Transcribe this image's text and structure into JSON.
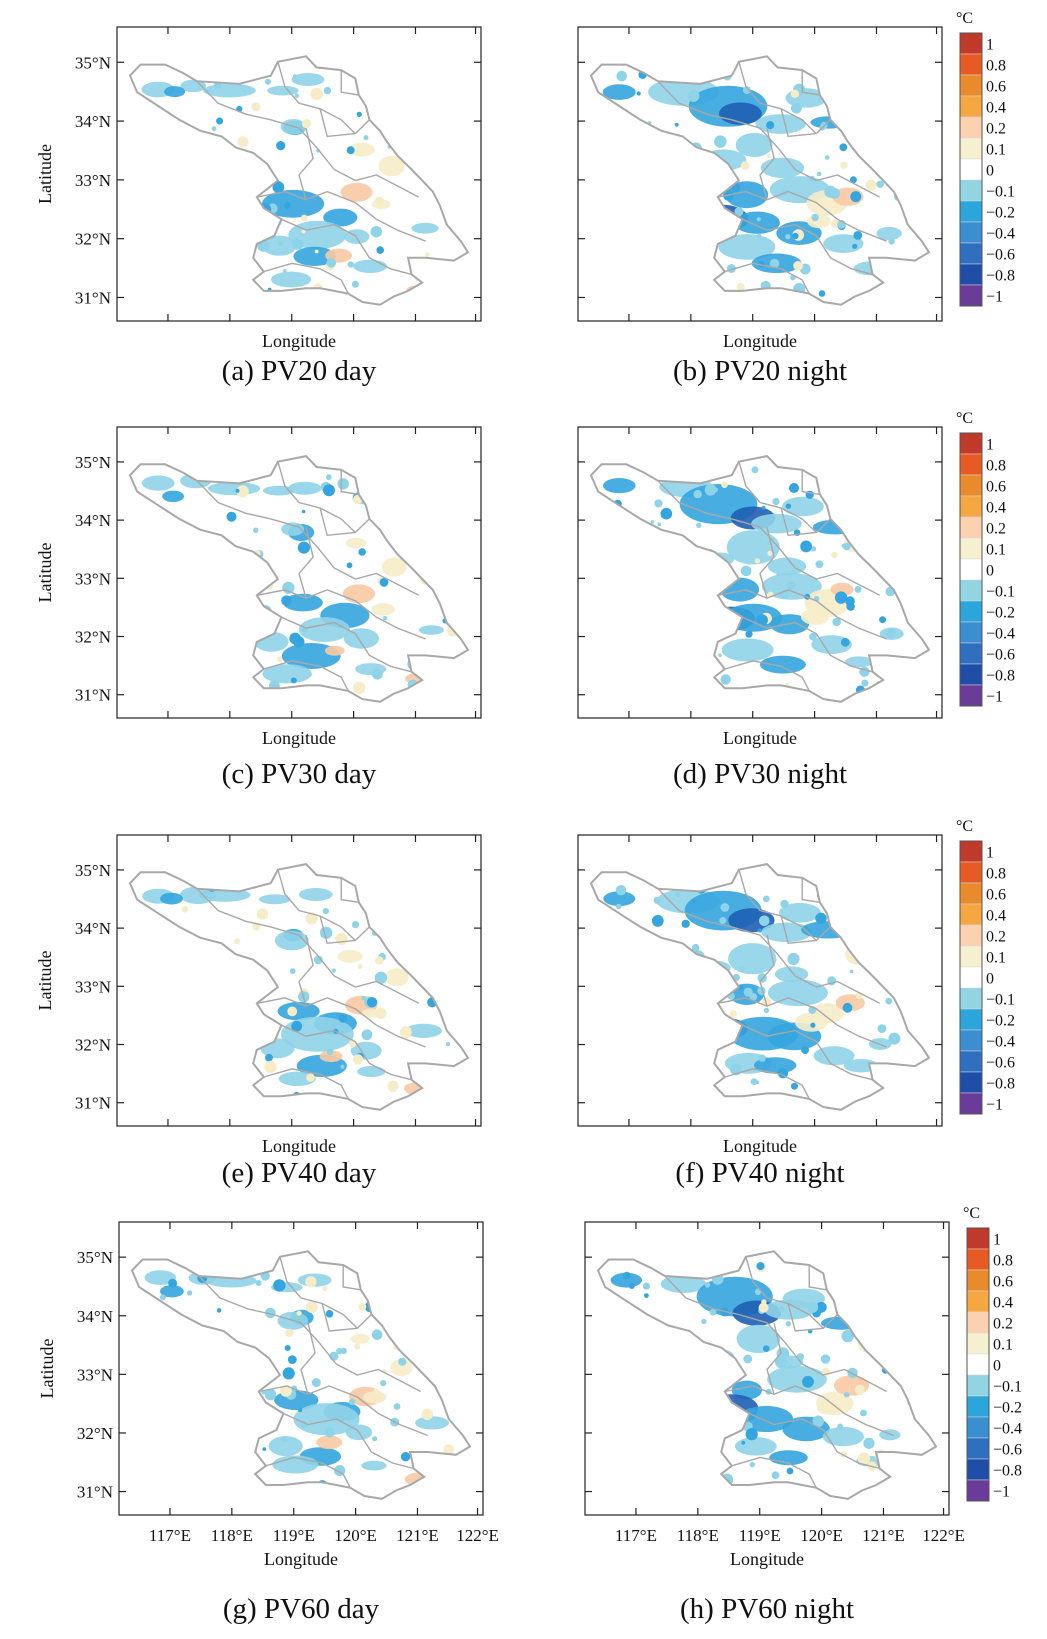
{
  "figure": {
    "x_axis_title": "Longitude",
    "y_axis_title": "Latitude",
    "lat_ticks": [
      "35°N",
      "34°N",
      "33°N",
      "32°N",
      "31°N"
    ],
    "lon_ticks": [
      "117°E",
      "118°E",
      "119°E",
      "120°E",
      "121°E",
      "122°E"
    ]
  },
  "colorbar": {
    "unit": "°C",
    "labels": [
      "1",
      "0.8",
      "0.6",
      "0.4",
      "0.2",
      "0.1",
      "0",
      "−0.1",
      "−0.2",
      "−0.4",
      "−0.6",
      "−0.8",
      "−1"
    ],
    "colors": [
      "#c0392b",
      "#e85a24",
      "#e98b2a",
      "#f5a742",
      "#fbd1b0",
      "#f5f0cf",
      "#ffffff",
      "#93d4e3",
      "#2aa6db",
      "#3a8fd1",
      "#2f6fc0",
      "#1f4ea8",
      "#6a3b98"
    ]
  },
  "colors": {
    "province_fill": "#ffffff",
    "province_border": "#a8a8a8",
    "cooling_light": "#8fd3e8",
    "cooling_mid": "#34a5de",
    "cooling_strong": "#1f5fb5",
    "warming_light": "#f6ecc8",
    "warming_mid": "#f8c9a3",
    "warming_strong": "#e97f3a"
  },
  "panels": [
    {
      "id": "a",
      "caption": "(a) PV20 day"
    },
    {
      "id": "b",
      "caption": "(b) PV20 night"
    },
    {
      "id": "c",
      "caption": "(c) PV30 day"
    },
    {
      "id": "d",
      "caption": "(d) PV30 night"
    },
    {
      "id": "e",
      "caption": "(e) PV40 day"
    },
    {
      "id": "f",
      "caption": "(f) PV40 night"
    },
    {
      "id": "g",
      "caption": "(g) PV60 day"
    },
    {
      "id": "h",
      "caption": "(h) PV60 night"
    }
  ]
}
